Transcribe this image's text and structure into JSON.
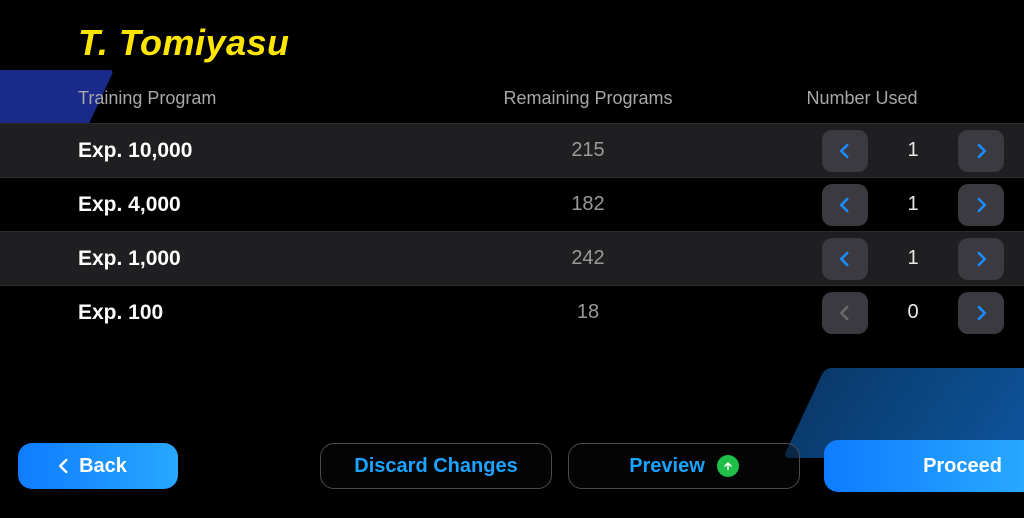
{
  "colors": {
    "background": "#000000",
    "player_name": "#ffe600",
    "header_text": "#a8a8a8",
    "row_alt_bg": "#1f1f22",
    "remaining_text": "#9a9a9a",
    "stepper_bg": "#3a3a40",
    "arrow_active": "#1a8cff",
    "arrow_disabled": "#6a6a6e",
    "outline_border": "#4a4a52",
    "outline_text": "#1aa3ff",
    "primary_grad_a": "#0e7cff",
    "primary_grad_b": "#28a8ff",
    "up_badge": "#1fbf4a"
  },
  "player_name": "T. Tomiyasu",
  "headers": {
    "program": "Training Program",
    "remaining": "Remaining Programs",
    "used": "Number Used"
  },
  "rows": [
    {
      "program": "Exp. 10,000",
      "remaining": "215",
      "used": "1",
      "dec_enabled": true,
      "inc_enabled": true,
      "alt": true
    },
    {
      "program": "Exp. 4,000",
      "remaining": "182",
      "used": "1",
      "dec_enabled": true,
      "inc_enabled": true,
      "alt": false
    },
    {
      "program": "Exp. 1,000",
      "remaining": "242",
      "used": "1",
      "dec_enabled": true,
      "inc_enabled": true,
      "alt": true
    },
    {
      "program": "Exp. 100",
      "remaining": "18",
      "used": "0",
      "dec_enabled": false,
      "inc_enabled": true,
      "alt": false
    }
  ],
  "footer": {
    "back": "Back",
    "discard": "Discard Changes",
    "preview": "Preview",
    "proceed": "Proceed"
  }
}
